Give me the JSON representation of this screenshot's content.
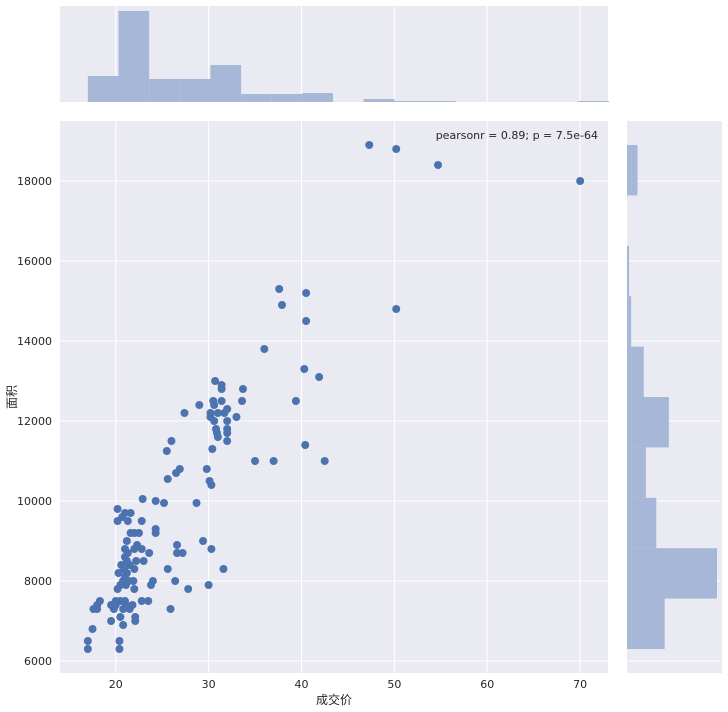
{
  "chart_data": {
    "type": "scatter",
    "xlabel": "成交价",
    "ylabel": "面积",
    "annotation": "pearsonr = 0.89; p = 7.5e-64",
    "xlim": [
      14,
      73
    ],
    "ylim": [
      5700,
      19500
    ],
    "x_ticks": [
      20,
      30,
      40,
      50,
      60,
      70
    ],
    "y_ticks": [
      6000,
      8000,
      10000,
      12000,
      14000,
      16000,
      18000
    ],
    "grid": true,
    "colors": {
      "background": "#EAEAF2",
      "grid": "#FFFFFF",
      "point": "#4C72B0",
      "hist": "#A7B7D7"
    },
    "points": [
      [
        17.0,
        6300
      ],
      [
        17.0,
        6500
      ],
      [
        17.5,
        6800
      ],
      [
        17.6,
        7300
      ],
      [
        18.0,
        7300
      ],
      [
        18.0,
        7400
      ],
      [
        18.3,
        7500
      ],
      [
        19.5,
        7000
      ],
      [
        19.5,
        7400
      ],
      [
        19.8,
        7300
      ],
      [
        20.0,
        7500
      ],
      [
        20.0,
        7400
      ],
      [
        20.2,
        7800
      ],
      [
        20.3,
        8200
      ],
      [
        20.2,
        9500
      ],
      [
        20.2,
        9800
      ],
      [
        20.4,
        6300
      ],
      [
        20.4,
        6500
      ],
      [
        20.5,
        7100
      ],
      [
        20.5,
        7500
      ],
      [
        20.5,
        7900
      ],
      [
        20.6,
        8400
      ],
      [
        20.7,
        9600
      ],
      [
        20.8,
        6900
      ],
      [
        20.8,
        7300
      ],
      [
        20.8,
        8000
      ],
      [
        20.9,
        8300
      ],
      [
        21.0,
        7500
      ],
      [
        21.0,
        8100
      ],
      [
        21.0,
        8600
      ],
      [
        21.0,
        8800
      ],
      [
        21.0,
        9700
      ],
      [
        21.1,
        7400
      ],
      [
        21.1,
        7900
      ],
      [
        21.2,
        8200
      ],
      [
        21.2,
        8500
      ],
      [
        21.2,
        9000
      ],
      [
        21.3,
        8700
      ],
      [
        21.3,
        9500
      ],
      [
        21.4,
        8000
      ],
      [
        21.5,
        7300
      ],
      [
        21.5,
        8400
      ],
      [
        21.6,
        9200
      ],
      [
        21.6,
        9700
      ],
      [
        21.8,
        7400
      ],
      [
        21.9,
        8000
      ],
      [
        22.0,
        7800
      ],
      [
        22.0,
        8300
      ],
      [
        22.0,
        8800
      ],
      [
        22.0,
        9200
      ],
      [
        22.1,
        7000
      ],
      [
        22.1,
        7100
      ],
      [
        22.2,
        8500
      ],
      [
        22.3,
        8900
      ],
      [
        22.5,
        9200
      ],
      [
        22.8,
        7500
      ],
      [
        22.8,
        8800
      ],
      [
        22.8,
        9500
      ],
      [
        22.9,
        10050
      ],
      [
        23.0,
        8500
      ],
      [
        23.5,
        7500
      ],
      [
        23.6,
        8700
      ],
      [
        23.8,
        7900
      ],
      [
        24.0,
        8000
      ],
      [
        24.3,
        9200
      ],
      [
        24.3,
        9300
      ],
      [
        24.3,
        10000
      ],
      [
        25.2,
        9950
      ],
      [
        25.5,
        11250
      ],
      [
        25.6,
        10550
      ],
      [
        25.6,
        8300
      ],
      [
        25.9,
        7300
      ],
      [
        26.0,
        11500
      ],
      [
        26.4,
        8000
      ],
      [
        26.5,
        10700
      ],
      [
        26.6,
        8700
      ],
      [
        26.6,
        8900
      ],
      [
        26.9,
        10800
      ],
      [
        27.2,
        8700
      ],
      [
        27.4,
        12200
      ],
      [
        27.8,
        7800
      ],
      [
        28.7,
        9950
      ],
      [
        29.0,
        12400
      ],
      [
        29.4,
        9000
      ],
      [
        29.8,
        10800
      ],
      [
        30.0,
        7900
      ],
      [
        30.1,
        10500
      ],
      [
        30.2,
        12100
      ],
      [
        30.2,
        12200
      ],
      [
        30.3,
        10400
      ],
      [
        30.3,
        8800
      ],
      [
        30.4,
        11300
      ],
      [
        30.5,
        12500
      ],
      [
        30.6,
        12000
      ],
      [
        30.6,
        12400
      ],
      [
        30.7,
        13000
      ],
      [
        30.8,
        11800
      ],
      [
        30.9,
        11700
      ],
      [
        31.0,
        11600
      ],
      [
        31.0,
        12200
      ],
      [
        31.4,
        12500
      ],
      [
        31.4,
        12800
      ],
      [
        31.4,
        12900
      ],
      [
        31.6,
        8300
      ],
      [
        31.7,
        12200
      ],
      [
        32.0,
        11500
      ],
      [
        32.0,
        11700
      ],
      [
        32.0,
        11800
      ],
      [
        32.0,
        12000
      ],
      [
        32.0,
        12300
      ],
      [
        33.0,
        12100
      ],
      [
        33.6,
        12500
      ],
      [
        33.7,
        12800
      ],
      [
        35.0,
        11000
      ],
      [
        36.0,
        13800
      ],
      [
        37.0,
        11000
      ],
      [
        37.6,
        15300
      ],
      [
        37.9,
        14900
      ],
      [
        39.4,
        12500
      ],
      [
        40.3,
        13300
      ],
      [
        40.4,
        11400
      ],
      [
        40.5,
        14500
      ],
      [
        40.5,
        15200
      ],
      [
        41.9,
        13100
      ],
      [
        42.5,
        11000
      ],
      [
        47.3,
        18900
      ],
      [
        50.2,
        18800
      ],
      [
        50.2,
        14800
      ],
      [
        54.7,
        18400
      ],
      [
        70.0,
        18000
      ]
    ],
    "x_hist": {
      "bins": [
        [
          17.0,
          20.3
        ],
        [
          20.3,
          23.6
        ],
        [
          23.6,
          26.9
        ],
        [
          26.9,
          30.2
        ],
        [
          30.2,
          33.5
        ],
        [
          33.5,
          36.8
        ],
        [
          36.8,
          40.1
        ],
        [
          40.1,
          43.4
        ],
        [
          43.4,
          46.7
        ],
        [
          46.7,
          50.0
        ],
        [
          50.0,
          53.3
        ],
        [
          53.3,
          56.6
        ],
        [
          56.6,
          59.9
        ],
        [
          59.9,
          63.2
        ],
        [
          63.2,
          66.5
        ],
        [
          66.5,
          69.8
        ],
        [
          69.8,
          73.1
        ]
      ],
      "counts": [
        26,
        91,
        23,
        23,
        37,
        8,
        8,
        9,
        0,
        3,
        1,
        1,
        0,
        0,
        0,
        0,
        1
      ]
    },
    "y_hist": {
      "bins": [
        [
          6300,
          7560
        ],
        [
          7560,
          8820
        ],
        [
          8820,
          10080
        ],
        [
          10080,
          11340
        ],
        [
          11340,
          12600
        ],
        [
          12600,
          13860
        ],
        [
          13860,
          15120
        ],
        [
          15120,
          16380
        ],
        [
          16380,
          17640
        ],
        [
          17640,
          18900
        ]
      ],
      "counts": [
        18,
        43,
        14,
        9,
        20,
        8,
        2,
        1,
        0,
        5
      ]
    }
  }
}
